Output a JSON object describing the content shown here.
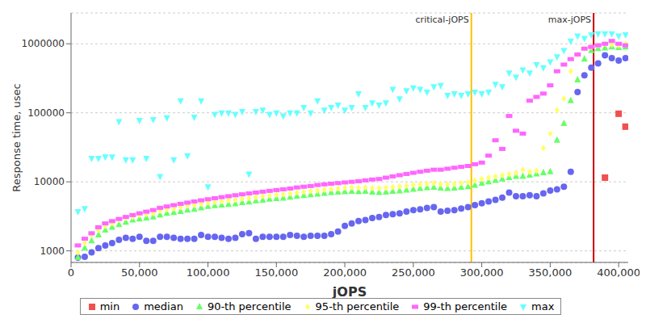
{
  "chart_data": {
    "type": "scatter",
    "xlabel": "jOPS",
    "ylabel": "Response time, usec",
    "log": "y",
    "grid": true,
    "legend": "bottom",
    "xlim": [
      0,
      407000
    ],
    "xticks": [
      0,
      {
        "value": 50000,
        "label": "50,000"
      },
      {
        "value": 100000,
        "label": "100,000"
      },
      {
        "value": 150000,
        "label": "150,000"
      },
      {
        "value": 200000,
        "label": "200,000"
      },
      {
        "value": 250000,
        "label": "250,000"
      },
      {
        "value": 300000,
        "label": "300,000"
      },
      {
        "value": 350000,
        "label": "350,000"
      },
      {
        "value": 400000,
        "label": "400,000"
      }
    ],
    "ylim": [
      680,
      2800000
    ],
    "yticks": [
      1000,
      10000,
      100000,
      1000000
    ],
    "annotations": [
      {
        "text": "critical-jOPS",
        "x": 292400,
        "color": "#ffc000"
      },
      {
        "text": "max-jOPS",
        "x": 381700,
        "color": "#cc0000"
      }
    ],
    "x": [
      5000,
      10000,
      15000,
      20000,
      25000,
      30000,
      35000,
      40000,
      45000,
      50000,
      55000,
      60000,
      65000,
      70000,
      75000,
      80000,
      85000,
      90000,
      95000,
      100000,
      105000,
      110000,
      115000,
      120000,
      125000,
      130000,
      135000,
      140000,
      145000,
      150000,
      155000,
      160000,
      165000,
      170000,
      175000,
      180000,
      185000,
      190000,
      195000,
      200000,
      205000,
      210000,
      215000,
      220000,
      225000,
      230000,
      235000,
      240000,
      245000,
      250000,
      255000,
      260000,
      265000,
      270000,
      275000,
      280000,
      285000,
      290000,
      295000,
      300000,
      305000,
      310000,
      315000,
      320000,
      325000,
      330000,
      335000,
      340000,
      345000,
      350000,
      355000,
      360000,
      365000,
      370000,
      375000,
      380000,
      385000,
      390000,
      395000,
      400000,
      405000
    ],
    "series": [
      {
        "name": "min",
        "color": "#f05050",
        "marker": "square",
        "values": [
          null,
          null,
          null,
          null,
          null,
          null,
          null,
          null,
          null,
          null,
          null,
          null,
          null,
          null,
          null,
          null,
          null,
          null,
          null,
          null,
          null,
          null,
          null,
          null,
          null,
          null,
          null,
          null,
          null,
          null,
          null,
          null,
          null,
          null,
          null,
          null,
          null,
          null,
          null,
          null,
          null,
          null,
          null,
          null,
          null,
          null,
          null,
          null,
          null,
          null,
          null,
          null,
          null,
          null,
          null,
          null,
          null,
          null,
          null,
          null,
          null,
          null,
          null,
          null,
          null,
          null,
          null,
          null,
          null,
          null,
          null,
          null,
          null,
          null,
          null,
          null,
          null,
          11500,
          null,
          97000,
          63000
        ]
      },
      {
        "name": "median",
        "color": "#6666f0",
        "marker": "circle",
        "values": [
          800,
          820,
          950,
          1100,
          1200,
          1300,
          1450,
          1550,
          1500,
          1600,
          1400,
          1400,
          1600,
          1600,
          1550,
          1500,
          1500,
          1500,
          1700,
          1600,
          1600,
          1550,
          1500,
          1550,
          1750,
          1800,
          1500,
          1600,
          1600,
          1600,
          1600,
          1700,
          1650,
          1600,
          1650,
          1650,
          1650,
          1750,
          1900,
          2300,
          2500,
          2700,
          2800,
          3000,
          3100,
          3300,
          3400,
          3500,
          3700,
          3900,
          4000,
          4200,
          4300,
          3700,
          3800,
          3900,
          4100,
          4300,
          4600,
          4900,
          5200,
          5500,
          5900,
          7000,
          6200,
          6200,
          6400,
          6200,
          6800,
          7500,
          7800,
          8500,
          14000,
          200000,
          350000,
          450000,
          520000,
          680000,
          620000,
          570000,
          620000
        ]
      },
      {
        "name": "90-th percentile",
        "color": "#66ff66",
        "marker": "triangle",
        "values": [
          800,
          1100,
          1400,
          1700,
          2000,
          2200,
          2400,
          2600,
          2800,
          2900,
          3000,
          3100,
          3300,
          3500,
          3600,
          3700,
          3900,
          4000,
          4200,
          4400,
          4500,
          4600,
          4700,
          4800,
          5000,
          5100,
          5300,
          5400,
          5600,
          5700,
          5800,
          6000,
          6200,
          6300,
          6500,
          6600,
          6800,
          7000,
          7100,
          7200,
          7300,
          7200,
          7300,
          7100,
          7000,
          7100,
          7300,
          7400,
          7600,
          7800,
          8000,
          8200,
          8300,
          8100,
          8000,
          8100,
          8300,
          8500,
          8900,
          9500,
          10000,
          10500,
          11000,
          11500,
          12000,
          12000,
          12500,
          13000,
          13500,
          14000,
          40000,
          70000,
          150000,
          300000,
          600000,
          800000,
          850000,
          870000,
          900000,
          880000,
          900000
        ]
      },
      {
        "name": "95-th percentile",
        "color": "#ffff66",
        "marker": "diamond",
        "values": [
          950,
          1300,
          1700,
          2000,
          2300,
          2500,
          2800,
          3000,
          3100,
          3300,
          3400,
          3500,
          3800,
          4000,
          4100,
          4300,
          4500,
          4600,
          4800,
          5000,
          5100,
          5200,
          5400,
          5500,
          5700,
          5800,
          6000,
          6200,
          6300,
          6500,
          6600,
          6800,
          7000,
          7200,
          7400,
          7500,
          7700,
          7900,
          8000,
          8200,
          8300,
          8200,
          8300,
          8100,
          8100,
          8200,
          8400,
          8600,
          8800,
          9000,
          9200,
          9400,
          9600,
          9300,
          9200,
          9300,
          9600,
          9900,
          10500,
          11000,
          11500,
          12000,
          12500,
          13000,
          13500,
          15000,
          14000,
          14500,
          31000,
          50000,
          110000,
          160000,
          400000,
          700000,
          850000,
          900000,
          950000,
          1000000,
          980000,
          950000,
          1000000
        ]
      },
      {
        "name": "99-th percentile",
        "color": "#ff66ff",
        "marker": "rect",
        "values": [
          1200,
          1500,
          1800,
          2200,
          2500,
          2700,
          2900,
          3100,
          3300,
          3500,
          3700,
          3900,
          4200,
          4400,
          4600,
          4800,
          5000,
          5200,
          5400,
          5600,
          5800,
          6000,
          6200,
          6400,
          6600,
          6800,
          7000,
          7200,
          7400,
          7600,
          7800,
          8000,
          8300,
          8500,
          8700,
          9000,
          9200,
          9400,
          9600,
          9800,
          10000,
          10200,
          10500,
          10800,
          11000,
          11500,
          12000,
          12500,
          13000,
          13500,
          14000,
          14500,
          15000,
          15000,
          15500,
          16000,
          16500,
          17000,
          18000,
          19000,
          24000,
          40000,
          30000,
          90000,
          55000,
          50000,
          150000,
          170000,
          190000,
          250000,
          400000,
          500000,
          600000,
          700000,
          850000,
          900000,
          950000,
          1000000,
          1100000,
          1000000,
          950000
        ]
      },
      {
        "name": "max",
        "color": "#66ffff",
        "marker": "triangle-down",
        "values": [
          3700,
          4100,
          22000,
          22000,
          23000,
          23000,
          75000,
          21000,
          21000,
          78000,
          22000,
          80000,
          12000,
          85000,
          21000,
          150000,
          24000,
          87000,
          150000,
          8500,
          95000,
          100000,
          100000,
          95000,
          105000,
          13000,
          105000,
          110000,
          95000,
          100000,
          90000,
          100000,
          100000,
          120000,
          100000,
          150000,
          110000,
          120000,
          130000,
          110000,
          120000,
          190000,
          120000,
          140000,
          130000,
          140000,
          220000,
          160000,
          210000,
          230000,
          220000,
          200000,
          240000,
          250000,
          180000,
          190000,
          180000,
          190000,
          200000,
          190000,
          200000,
          260000,
          240000,
          380000,
          330000,
          420000,
          380000,
          500000,
          450000,
          550000,
          650000,
          800000,
          1100000,
          1300000,
          1200000,
          1350000,
          1400000,
          1400000,
          1400000,
          1300000,
          1350000
        ]
      }
    ]
  }
}
